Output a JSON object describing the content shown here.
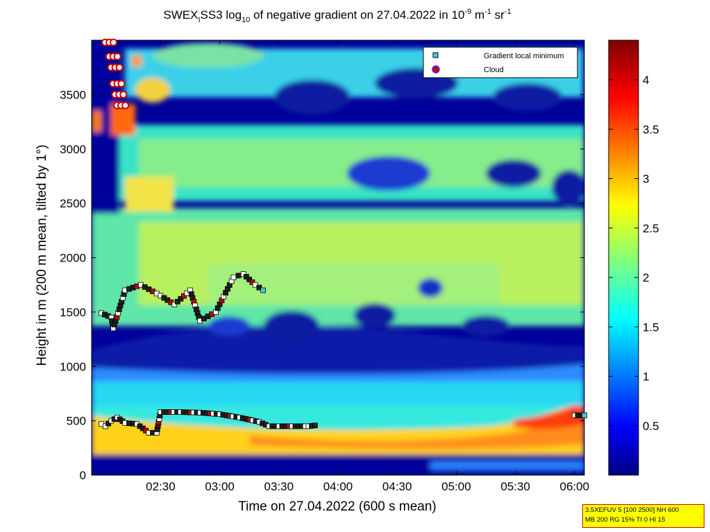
{
  "chart_data": {
    "type": "heatmap",
    "title": {
      "prefix": "SWEX",
      "prefix_sub": "I",
      "main": "SS3 log",
      "log_sub": "10",
      "rest": " of negative gradient on 27.04.2022 in 10",
      "unit_exp1": "-9",
      "unit_mid": " m",
      "unit_exp2": "-1",
      "unit_end": " sr",
      "unit_exp3": "-1"
    },
    "xlabel": "Time on 27.04.2022 (600 s mean)",
    "ylabel": "Height in m (200 m mean, tilted by 1°)",
    "x_range": [
      "01:55",
      "06:05"
    ],
    "x_ticks": [
      "02:30",
      "03:00",
      "03:30",
      "04:00",
      "04:30",
      "05:00",
      "05:30",
      "06:00"
    ],
    "y_range": [
      0,
      4000
    ],
    "y_ticks": [
      "0",
      "500",
      "1000",
      "1500",
      "2000",
      "2500",
      "3000",
      "3500"
    ],
    "colorbar": {
      "range": [
        0,
        4.4
      ],
      "ticks": [
        "0.5",
        "1",
        "1.5",
        "2",
        "2.5",
        "3",
        "3.5",
        "4"
      ],
      "colormap": "jet"
    },
    "legend": {
      "position": "top-right",
      "entries": [
        {
          "label": "Gradient local minimum",
          "color": "#33d6d6",
          "marker": "square"
        },
        {
          "label": "Cloud",
          "color": "#d00000",
          "marker": "circle"
        }
      ]
    },
    "boundary_layer_series": {
      "name": "Gradient local minimum",
      "points": [
        [
          "02:00",
          470
        ],
        [
          "02:02",
          450
        ],
        [
          "02:05",
          500
        ],
        [
          "02:08",
          530
        ],
        [
          "02:12",
          480
        ],
        [
          "02:18",
          470
        ],
        [
          "02:24",
          390
        ],
        [
          "02:28",
          390
        ],
        [
          "02:30",
          580
        ],
        [
          "02:40",
          580
        ],
        [
          "02:50",
          575
        ],
        [
          "03:00",
          560
        ],
        [
          "03:10",
          530
        ],
        [
          "03:20",
          490
        ],
        [
          "03:25",
          450
        ],
        [
          "03:30",
          450
        ],
        [
          "03:45",
          450
        ],
        [
          "03:50",
          460
        ],
        [
          "06:00",
          550
        ],
        [
          "06:05",
          550
        ]
      ]
    },
    "upper_layer_series": {
      "name": "Gradient local minimum",
      "points": [
        [
          "02:00",
          1490
        ],
        [
          "02:05",
          1450
        ],
        [
          "02:06",
          1350
        ],
        [
          "02:12",
          1700
        ],
        [
          "02:20",
          1750
        ],
        [
          "02:30",
          1650
        ],
        [
          "02:37",
          1570
        ],
        [
          "02:45",
          1700
        ],
        [
          "02:50",
          1420
        ],
        [
          "02:58",
          1500
        ],
        [
          "03:07",
          1820
        ],
        [
          "03:12",
          1850
        ],
        [
          "03:18",
          1750
        ],
        [
          "03:22",
          1700
        ]
      ]
    },
    "cloud_series": {
      "name": "Cloud",
      "points": [
        [
          "02:04",
          3980
        ],
        [
          "02:06",
          3850
        ],
        [
          "02:07",
          3750
        ],
        [
          "02:08",
          3600
        ],
        [
          "02:09",
          3500
        ],
        [
          "02:10",
          3400
        ]
      ]
    }
  },
  "info_box": {
    "line1": "3.5XEFUV 5 [100 2500] NH 600",
    "line2": "MB 200 RG 15% TI 0 HI 15"
  }
}
